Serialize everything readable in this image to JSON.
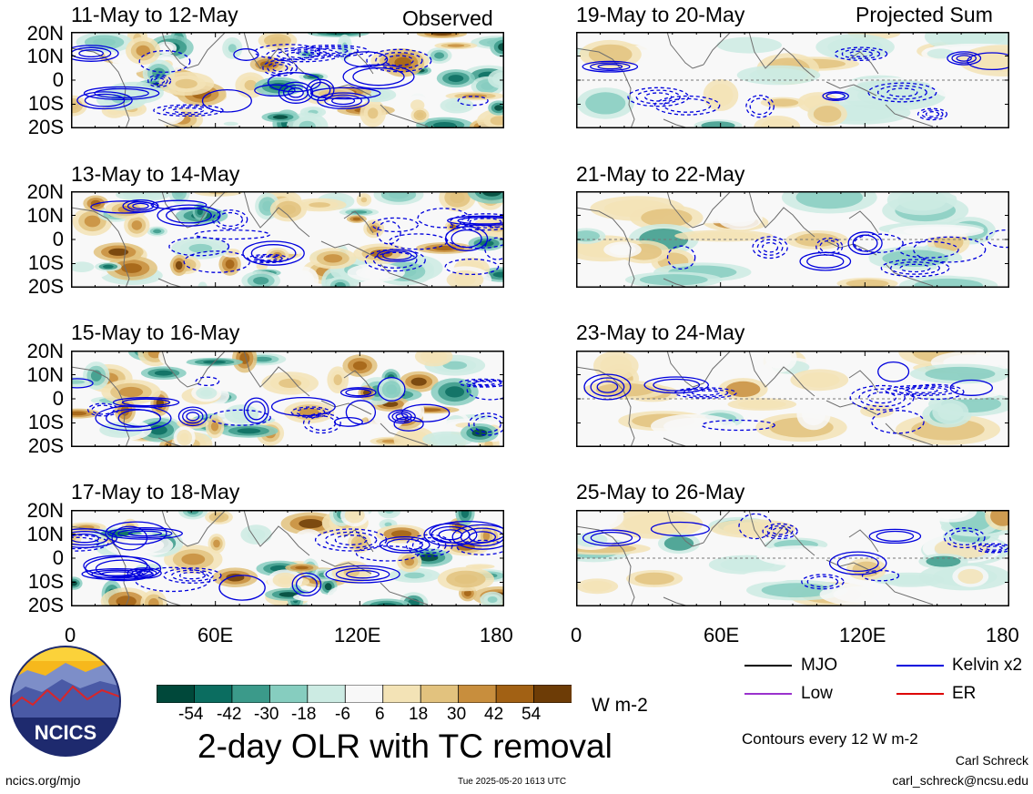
{
  "header": {
    "left_label": "Observed",
    "right_label": "Projected Sum"
  },
  "panels": {
    "observed": [
      {
        "title": "11-May to 12-May"
      },
      {
        "title": "13-May to 14-May"
      },
      {
        "title": "15-May to 16-May"
      },
      {
        "title": "17-May to 18-May"
      }
    ],
    "projected": [
      {
        "title": "19-May to 20-May"
      },
      {
        "title": "21-May to 22-May"
      },
      {
        "title": "23-May to 24-May"
      },
      {
        "title": "25-May to 26-May"
      }
    ]
  },
  "axes": {
    "lat_labels": [
      "20N",
      "10N",
      "0",
      "10S",
      "20S"
    ],
    "lon_labels": [
      "0",
      "60E",
      "120E",
      "180"
    ]
  },
  "colorbar": {
    "labels": [
      "-54",
      "-42",
      "-30",
      "-18",
      "-6",
      "6",
      "18",
      "30",
      "42",
      "54"
    ],
    "units": "W m-2",
    "colors": [
      "#00483a",
      "#0b6d60",
      "#3b9a8a",
      "#86cdbf",
      "#ccebe3",
      "#f8f8f8",
      "#f3e3b6",
      "#e2c27e",
      "#c88e3d",
      "#a26114",
      "#6d3c06"
    ]
  },
  "main_title": "2-day OLR with TC removal",
  "legend": {
    "items": [
      {
        "label": "MJO",
        "color": "#000000"
      },
      {
        "label": "Kelvin x2",
        "color": "#0000dd"
      },
      {
        "label": "Low",
        "color": "#9a32cd"
      },
      {
        "label": "ER",
        "color": "#dd0000"
      }
    ],
    "contours_note": "Contours every 12 W m-2"
  },
  "credits": {
    "author": "Carl Schreck",
    "email": "carl_schreck@ncsu.edu"
  },
  "footer": {
    "site": "ncics.org/mjo",
    "timestamp": "Tue 2025-05-20 1613 UTC"
  },
  "logo": {
    "text": "NCICS"
  }
}
